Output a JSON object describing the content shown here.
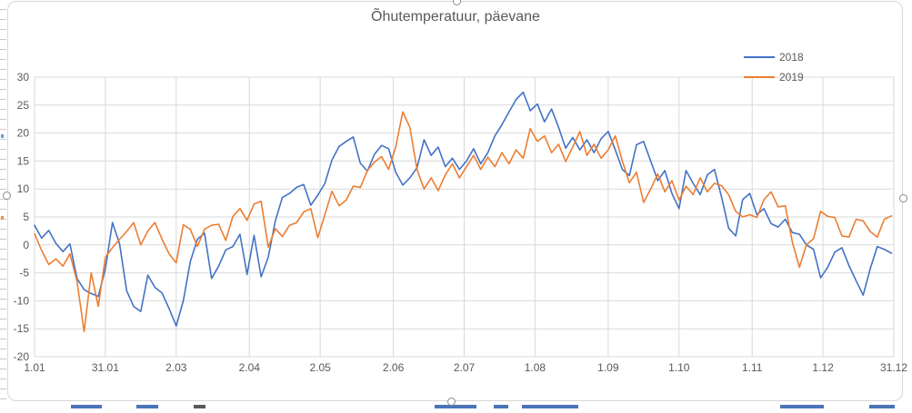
{
  "chart_data": {
    "type": "line",
    "title": "Õhutemperatuur, päevane",
    "xlabel": "",
    "ylabel": "",
    "grid": true,
    "legend_position": "top-right",
    "y_axis": {
      "min": -20,
      "max": 30,
      "step": 5,
      "tick_labels": [
        "30",
        "25",
        "20",
        "15",
        "10",
        "5",
        "0",
        "-5",
        "-10",
        "-15",
        "-20"
      ]
    },
    "x_axis": {
      "tick_labels": [
        "1.01",
        "31.01",
        "2.03",
        "2.04",
        "2.05",
        "2.06",
        "2.07",
        "1.08",
        "1.09",
        "1.10",
        "1.11",
        "1.12",
        "31.12"
      ],
      "tick_days": [
        0,
        30,
        60,
        91,
        121,
        152,
        182,
        212,
        243,
        273,
        304,
        334,
        364
      ]
    },
    "series": [
      {
        "name": "2018",
        "color": "#4472C4",
        "day_step": 3,
        "values": [
          3.5,
          1.2,
          2.6,
          0.3,
          -1.2,
          0.2,
          -6.0,
          -8.0,
          -8.7,
          -9.2,
          -4.3,
          4.0,
          0.2,
          -8.2,
          -11.0,
          -11.9,
          -5.4,
          -7.6,
          -8.6,
          -11.4,
          -14.5,
          -10.0,
          -3.0,
          1.0,
          2.1,
          -6.0,
          -3.8,
          -0.9,
          -0.3,
          1.9,
          -5.3,
          1.7,
          -5.7,
          -2.2,
          4.3,
          8.5,
          9.2,
          10.3,
          10.8,
          7.1,
          8.9,
          11.0,
          15.2,
          17.6,
          18.5,
          19.3,
          14.6,
          13.2,
          16.2,
          17.8,
          17.2,
          13.0,
          10.7,
          12.0,
          13.8,
          18.8,
          16.0,
          17.5,
          14.0,
          15.5,
          13.5,
          15.0,
          17.2,
          14.5,
          16.5,
          19.5,
          21.5,
          23.8,
          26.0,
          27.3,
          24.0,
          25.2,
          22.0,
          24.3,
          21.0,
          17.3,
          19.2,
          17.0,
          18.8,
          16.5,
          19.0,
          20.3,
          17.0,
          13.5,
          12.4,
          17.9,
          18.5,
          15.0,
          11.5,
          13.3,
          9.2,
          6.5,
          13.3,
          11.0,
          9.0,
          12.5,
          13.5,
          8.6,
          3.0,
          1.6,
          8.1,
          9.2,
          5.4,
          6.5,
          3.8,
          3.2,
          4.6,
          2.2,
          1.9,
          0.0,
          -0.8,
          -5.9,
          -4.0,
          -1.3,
          -0.5,
          -3.7,
          -6.4,
          -9.0,
          -4.3,
          -0.3,
          -0.8,
          -1.5
        ]
      },
      {
        "name": "2019",
        "color": "#ED7D31",
        "day_step": 3,
        "values": [
          2.0,
          -1.0,
          -3.5,
          -2.5,
          -3.8,
          -1.6,
          -6.5,
          -15.5,
          -5.0,
          -11.0,
          -2.2,
          -0.5,
          1.0,
          2.4,
          4.0,
          0.0,
          2.5,
          4.0,
          1.0,
          -1.6,
          -3.2,
          3.6,
          2.8,
          -0.3,
          2.8,
          3.5,
          3.7,
          0.8,
          5.1,
          6.5,
          4.4,
          7.3,
          7.8,
          -0.4,
          2.9,
          1.5,
          3.5,
          4.0,
          5.9,
          6.5,
          1.3,
          5.4,
          9.6,
          7.0,
          8.0,
          10.5,
          10.3,
          13.3,
          14.8,
          15.8,
          13.5,
          17.5,
          23.8,
          21.0,
          13.5,
          10.0,
          12.0,
          9.7,
          12.5,
          14.5,
          12.0,
          14.0,
          16.0,
          13.5,
          15.7,
          14.0,
          16.5,
          14.5,
          17.0,
          15.5,
          20.8,
          18.5,
          19.5,
          16.5,
          18.0,
          14.9,
          17.5,
          20.3,
          16.0,
          18.0,
          15.5,
          17.0,
          19.5,
          15.0,
          11.1,
          13.0,
          7.6,
          10.0,
          12.7,
          9.5,
          11.5,
          8.0,
          10.5,
          9.0,
          12.0,
          9.5,
          11.0,
          10.6,
          9.0,
          6.0,
          5.0,
          5.4,
          4.9,
          8.1,
          9.5,
          6.8,
          7.0,
          0.5,
          -4.0,
          0.0,
          1.1,
          6.0,
          5.1,
          4.9,
          1.6,
          1.4,
          4.6,
          4.3,
          2.4,
          1.4,
          4.6,
          5.2
        ]
      }
    ]
  }
}
